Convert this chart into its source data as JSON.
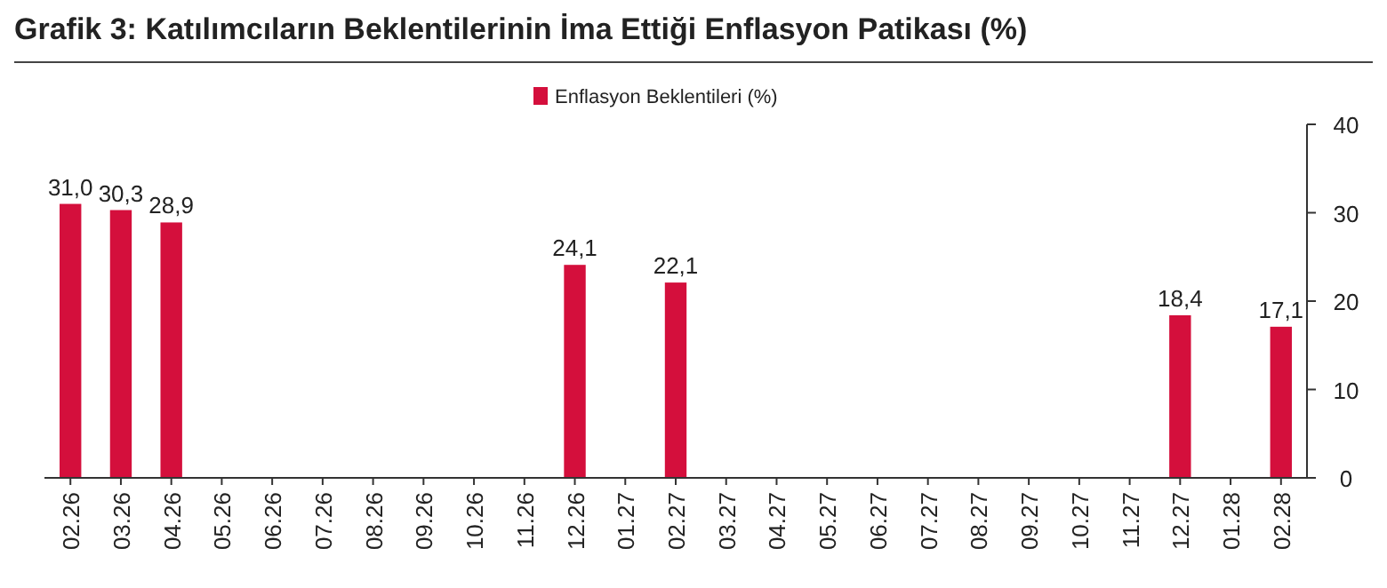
{
  "chart_data": {
    "type": "bar",
    "title": "Grafik 3: Katılımcıların Beklentilerinin İma Ettiği Enflasyon Patikası (%)",
    "categories": [
      "02.26",
      "03.26",
      "04.26",
      "05.26",
      "06.26",
      "07.26",
      "08.26",
      "09.26",
      "10.26",
      "11.26",
      "12.26",
      "01.27",
      "02.27",
      "03.27",
      "04.27",
      "05.27",
      "06.27",
      "07.27",
      "08.27",
      "09.27",
      "10.27",
      "11.27",
      "12.27",
      "01.28",
      "02.28"
    ],
    "series": [
      {
        "name": "Enflasyon Beklentileri (%)",
        "color": "#d40f3c",
        "values": [
          31.0,
          30.3,
          28.9,
          null,
          null,
          null,
          null,
          null,
          null,
          null,
          24.1,
          null,
          22.1,
          null,
          null,
          null,
          null,
          null,
          null,
          null,
          null,
          null,
          18.4,
          null,
          17.1
        ],
        "value_labels": [
          "31,0",
          "30,3",
          "28,9",
          null,
          null,
          null,
          null,
          null,
          null,
          null,
          "24,1",
          null,
          "22,1",
          null,
          null,
          null,
          null,
          null,
          null,
          null,
          null,
          null,
          "18,4",
          null,
          "17,1"
        ]
      }
    ],
    "ylim": [
      0,
      40
    ],
    "yticks": [
      0,
      10,
      20,
      30,
      40
    ],
    "legend": "top",
    "grid": false
  }
}
